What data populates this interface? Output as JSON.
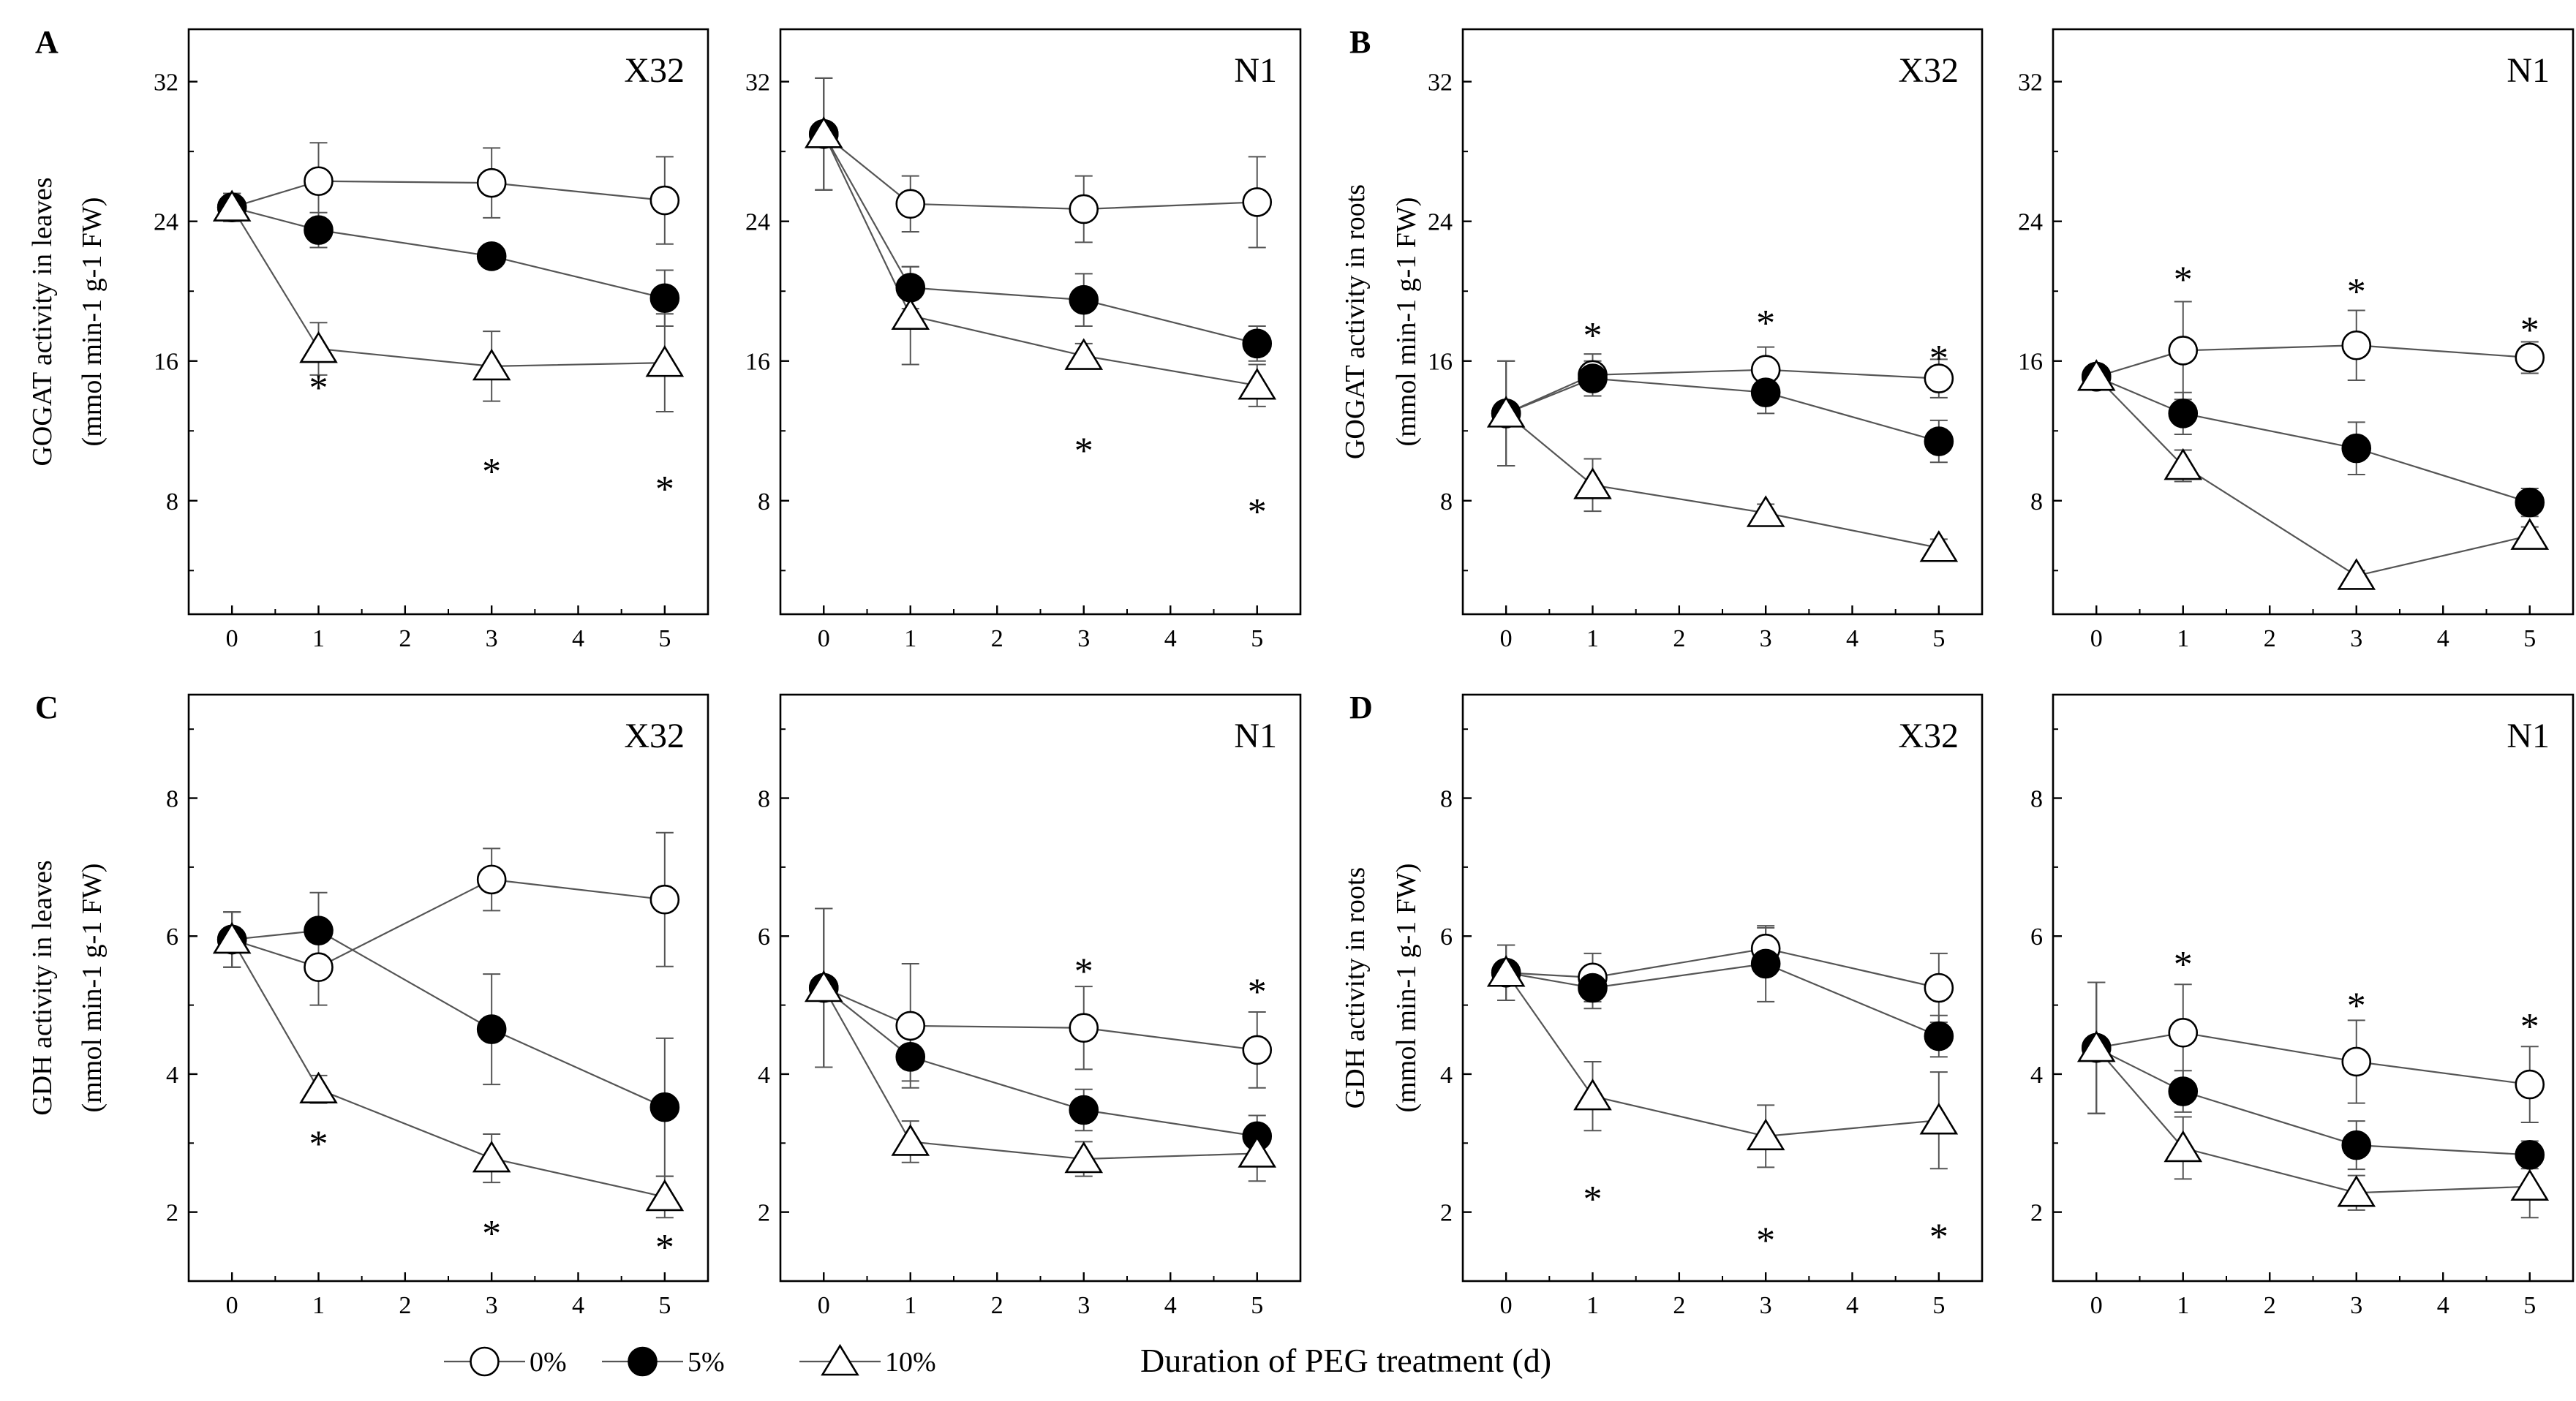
{
  "chart_data": {
    "type": "line",
    "x_axis_label": "Duration of PEG treatment (d)",
    "legend": [
      {
        "label": "0%",
        "marker": "open-circle"
      },
      {
        "label": "5%",
        "marker": "filled-circle"
      },
      {
        "label": "10%",
        "marker": "open-triangle"
      }
    ],
    "panels": [
      {
        "letter": "A",
        "ylabel_main": "GOGAT activity in leaves",
        "ylabel_unit": "(mmol min-1 g-1 FW)",
        "subplots": [
          {
            "cultivar": "X32",
            "x": [
              0,
              1,
              3,
              5
            ],
            "xlim": [
              -0.5,
              5.5
            ],
            "xticks": [
              0,
              1,
              2,
              3,
              4,
              5
            ],
            "ylim": [
              1.5,
              35
            ],
            "yticks": [
              8,
              16,
              24,
              32
            ],
            "series": [
              {
                "name": "0%",
                "values": [
                  24.8,
                  26.3,
                  26.2,
                  25.2
                ],
                "err": [
                  0.8,
                  2.2,
                  2.0,
                  2.5
                ]
              },
              {
                "name": "5%",
                "values": [
                  24.8,
                  23.5,
                  22.0,
                  19.6
                ],
                "err": [
                  0.8,
                  1.0,
                  0.6,
                  1.6
                ]
              },
              {
                "name": "10%",
                "values": [
                  24.8,
                  16.7,
                  15.7,
                  15.9
                ],
                "err": [
                  0.8,
                  1.5,
                  2.0,
                  2.8
                ]
              }
            ],
            "stars": [
              {
                "x": 1,
                "y": 14.5
              },
              {
                "x": 3,
                "y": 9.7
              },
              {
                "x": 5,
                "y": 8.7
              }
            ]
          },
          {
            "cultivar": "N1",
            "x": [
              0,
              1,
              3,
              5
            ],
            "xlim": [
              -0.5,
              5.5
            ],
            "xticks": [
              0,
              1,
              2,
              3,
              4,
              5
            ],
            "ylim": [
              1.5,
              35
            ],
            "yticks": [
              8,
              16,
              24,
              32
            ],
            "series": [
              {
                "name": "0%",
                "values": [
                  29.0,
                  25.0,
                  24.7,
                  25.1
                ],
                "err": [
                  3.2,
                  1.6,
                  1.9,
                  2.6
                ]
              },
              {
                "name": "5%",
                "values": [
                  29.0,
                  20.2,
                  19.5,
                  17.0
                ],
                "err": [
                  3.2,
                  1.2,
                  1.5,
                  1.0
                ]
              },
              {
                "name": "10%",
                "values": [
                  29.0,
                  18.6,
                  16.3,
                  14.6
                ],
                "err": [
                  3.2,
                  2.8,
                  0.7,
                  1.2
                ]
              }
            ],
            "stars": [
              {
                "x": 3,
                "y": 10.9
              },
              {
                "x": 5,
                "y": 7.4
              }
            ]
          }
        ]
      },
      {
        "letter": "B",
        "ylabel_main": "GOGAT activity in roots",
        "ylabel_unit": "(mmol min-1 g-1 FW)",
        "subplots": [
          {
            "cultivar": "X32",
            "x": [
              0,
              1,
              3,
              5
            ],
            "xlim": [
              -0.5,
              5.5
            ],
            "xticks": [
              0,
              1,
              2,
              3,
              4,
              5
            ],
            "ylim": [
              1.5,
              35
            ],
            "yticks": [
              8,
              16,
              24,
              32
            ],
            "series": [
              {
                "name": "0%",
                "values": [
                  13.0,
                  15.2,
                  15.5,
                  15.0
                ],
                "err": [
                  3.0,
                  1.2,
                  1.3,
                  1.1
                ]
              },
              {
                "name": "5%",
                "values": [
                  13.0,
                  15.0,
                  14.2,
                  11.4
                ],
                "err": [
                  3.0,
                  1.0,
                  1.2,
                  1.2
                ]
              },
              {
                "name": "10%",
                "values": [
                  13.0,
                  8.9,
                  7.3,
                  5.3
                ],
                "err": [
                  3.0,
                  1.5,
                  0.5,
                  0.5
                ]
              }
            ],
            "stars": [
              {
                "x": 1,
                "y": 17.5
              },
              {
                "x": 3,
                "y": 18.2
              },
              {
                "x": 5,
                "y": 16.2
              }
            ]
          },
          {
            "cultivar": "N1",
            "x": [
              0,
              1,
              3,
              5
            ],
            "xlim": [
              -0.5,
              5.5
            ],
            "xticks": [
              0,
              1,
              2,
              3,
              4,
              5
            ],
            "ylim": [
              1.5,
              35
            ],
            "yticks": [
              8,
              16,
              24,
              32
            ],
            "series": [
              {
                "name": "0%",
                "values": [
                  15.1,
                  16.6,
                  16.9,
                  16.2
                ],
                "err": [
                  0.6,
                  2.8,
                  2.0,
                  0.9
                ]
              },
              {
                "name": "5%",
                "values": [
                  15.1,
                  13.0,
                  11.0,
                  7.9
                ],
                "err": [
                  0.6,
                  1.2,
                  1.5,
                  0.8
                ]
              },
              {
                "name": "10%",
                "values": [
                  15.1,
                  10.0,
                  3.7,
                  6.0
                ],
                "err": [
                  0.6,
                  0.9,
                  0.3,
                  0.5
                ]
              }
            ],
            "stars": [
              {
                "x": 1,
                "y": 20.7
              },
              {
                "x": 3,
                "y": 20.0
              },
              {
                "x": 5,
                "y": 17.8
              }
            ]
          }
        ]
      },
      {
        "letter": "C",
        "ylabel_main": "GDH activity in leaves",
        "ylabel_unit": "(mmol min-1 g-1 FW)",
        "subplots": [
          {
            "cultivar": "X32",
            "x": [
              0,
              1,
              3,
              5
            ],
            "xlim": [
              -0.5,
              5.5
            ],
            "xticks": [
              0,
              1,
              2,
              3,
              4,
              5
            ],
            "ylim": [
              1,
              9.5
            ],
            "yticks": [
              2,
              4,
              6,
              8
            ],
            "series": [
              {
                "name": "0%",
                "values": [
                  5.95,
                  5.55,
                  6.82,
                  6.53
                ],
                "err": [
                  0.4,
                  0.55,
                  0.45,
                  0.97
                ]
              },
              {
                "name": "5%",
                "values": [
                  5.95,
                  6.08,
                  4.65,
                  3.52
                ],
                "err": [
                  0.4,
                  0.55,
                  0.8,
                  1.0
                ]
              },
              {
                "name": "10%",
                "values": [
                  5.95,
                  3.78,
                  2.78,
                  2.22
                ],
                "err": [
                  0.4,
                  0.2,
                  0.35,
                  0.3
                ]
              }
            ],
            "stars": [
              {
                "x": 1,
                "y": 3.0
              },
              {
                "x": 3,
                "y": 1.7
              },
              {
                "x": 5,
                "y": 1.5
              }
            ]
          },
          {
            "cultivar": "N1",
            "x": [
              0,
              1,
              3,
              5
            ],
            "xlim": [
              -0.5,
              5.5
            ],
            "xticks": [
              0,
              1,
              2,
              3,
              4,
              5
            ],
            "ylim": [
              1,
              9.5
            ],
            "yticks": [
              2,
              4,
              6,
              8
            ],
            "series": [
              {
                "name": "0%",
                "values": [
                  5.25,
                  4.7,
                  4.67,
                  4.35
                ],
                "err": [
                  1.15,
                  0.9,
                  0.6,
                  0.55
                ]
              },
              {
                "name": "5%",
                "values": [
                  5.25,
                  4.25,
                  3.48,
                  3.1
                ],
                "err": [
                  1.15,
                  0.35,
                  0.3,
                  0.3
                ]
              },
              {
                "name": "10%",
                "values": [
                  5.25,
                  3.02,
                  2.77,
                  2.85
                ],
                "err": [
                  1.15,
                  0.3,
                  0.25,
                  0.4
                ]
              }
            ],
            "stars": [
              {
                "x": 3,
                "y": 5.5
              },
              {
                "x": 5,
                "y": 5.2
              }
            ]
          }
        ]
      },
      {
        "letter": "D",
        "ylabel_main": "GDH activity in roots",
        "ylabel_unit": "(mmol min-1 g-1 FW)",
        "subplots": [
          {
            "cultivar": "X32",
            "x": [
              0,
              1,
              3,
              5
            ],
            "xlim": [
              -0.5,
              5.5
            ],
            "xticks": [
              0,
              1,
              2,
              3,
              4,
              5
            ],
            "ylim": [
              1,
              9.5
            ],
            "yticks": [
              2,
              4,
              6,
              8
            ],
            "series": [
              {
                "name": "0%",
                "values": [
                  5.47,
                  5.4,
                  5.82,
                  5.25
                ],
                "err": [
                  0.4,
                  0.35,
                  0.3,
                  0.5
                ]
              },
              {
                "name": "5%",
                "values": [
                  5.47,
                  5.25,
                  5.6,
                  4.55
                ],
                "err": [
                  0.4,
                  0.3,
                  0.55,
                  0.3
                ]
              },
              {
                "name": "10%",
                "values": [
                  5.47,
                  3.68,
                  3.1,
                  3.33
                ],
                "err": [
                  0.4,
                  0.5,
                  0.45,
                  0.7
                ]
              }
            ],
            "stars": [
              {
                "x": 1,
                "y": 2.2
              },
              {
                "x": 3,
                "y": 1.6
              },
              {
                "x": 5,
                "y": 1.65
              }
            ]
          },
          {
            "cultivar": "N1",
            "x": [
              0,
              1,
              3,
              5
            ],
            "xlim": [
              -0.5,
              5.5
            ],
            "xticks": [
              0,
              1,
              2,
              3,
              4,
              5
            ],
            "ylim": [
              1,
              9.5
            ],
            "yticks": [
              2,
              4,
              6,
              8
            ],
            "series": [
              {
                "name": "0%",
                "values": [
                  4.38,
                  4.6,
                  4.18,
                  3.85
                ],
                "err": [
                  0.95,
                  0.7,
                  0.6,
                  0.55
                ]
              },
              {
                "name": "5%",
                "values": [
                  4.38,
                  3.75,
                  2.97,
                  2.83
                ],
                "err": [
                  0.95,
                  0.3,
                  0.35,
                  0.2
                ]
              },
              {
                "name": "10%",
                "values": [
                  4.38,
                  2.93,
                  2.28,
                  2.37
                ],
                "err": [
                  0.95,
                  0.45,
                  0.25,
                  0.45
                ]
              }
            ],
            "stars": [
              {
                "x": 1,
                "y": 5.6
              },
              {
                "x": 3,
                "y": 5.0
              },
              {
                "x": 5,
                "y": 4.7
              }
            ]
          }
        ]
      }
    ]
  }
}
